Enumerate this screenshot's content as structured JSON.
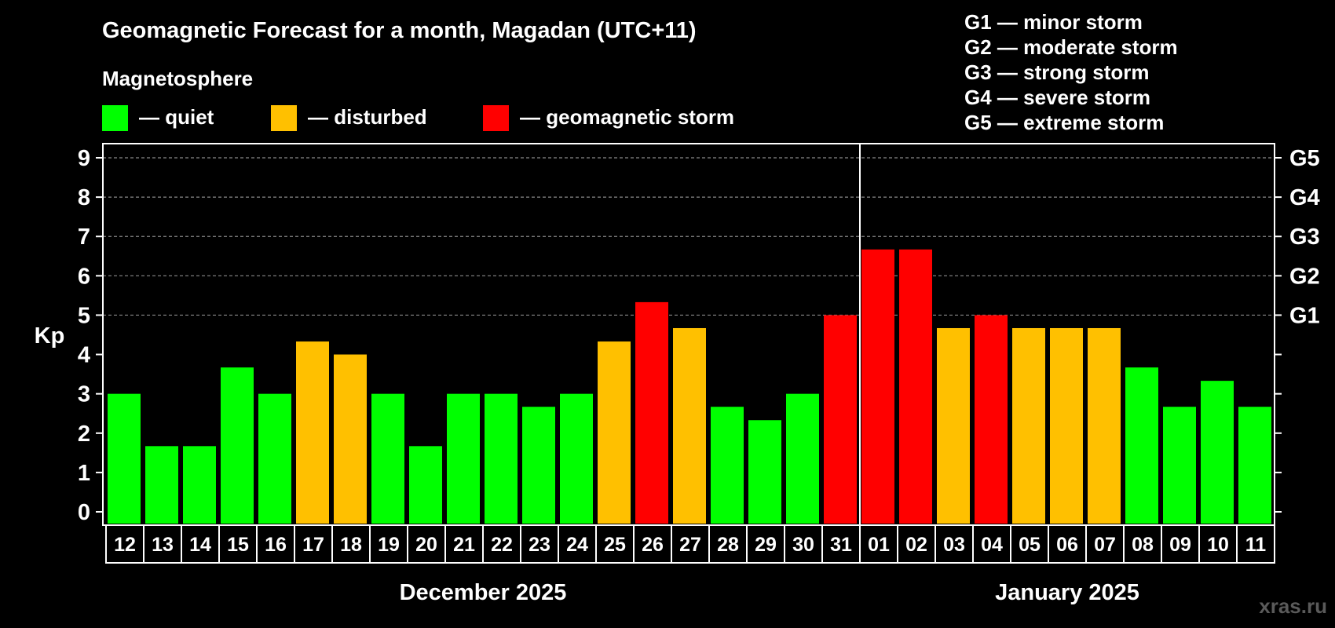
{
  "chart_data": {
    "type": "bar",
    "title": "Geomagnetic Forecast for a month, Magadan (UTC+11)",
    "ylabel": "Kp",
    "ylim": [
      0,
      9
    ],
    "grid": "horizontal dashed at 5-9",
    "legend": {
      "heading": "Magnetosphere",
      "items": [
        {
          "label": "— quiet",
          "color": "#00ff00"
        },
        {
          "label": "— disturbed",
          "color": "#ffc000"
        },
        {
          "label": "— geomagnetic storm",
          "color": "#ff0000"
        }
      ]
    },
    "storm_scale": [
      "G1 — minor storm",
      "G2 — moderate storm",
      "G3 — strong storm",
      "G4 — severe storm",
      "G5 — extreme storm"
    ],
    "right_axis": [
      {
        "kp": 5,
        "label": "G1"
      },
      {
        "kp": 6,
        "label": "G2"
      },
      {
        "kp": 7,
        "label": "G3"
      },
      {
        "kp": 8,
        "label": "G4"
      },
      {
        "kp": 9,
        "label": "G5"
      }
    ],
    "months": [
      {
        "label": "December 2025",
        "days": 20
      },
      {
        "label": "January 2025",
        "days": 11
      }
    ],
    "categories": [
      "12",
      "13",
      "14",
      "15",
      "16",
      "17",
      "18",
      "19",
      "20",
      "21",
      "22",
      "23",
      "24",
      "25",
      "26",
      "27",
      "28",
      "29",
      "30",
      "31",
      "01",
      "02",
      "03",
      "04",
      "05",
      "06",
      "07",
      "08",
      "09",
      "10",
      "11"
    ],
    "values": [
      3,
      1.67,
      1.67,
      3.67,
      3,
      4.33,
      4,
      3,
      1.67,
      3,
      3,
      2.67,
      3,
      4.33,
      5.33,
      4.67,
      2.67,
      2.33,
      3,
      5,
      6.67,
      6.67,
      4.67,
      5,
      4.67,
      4.67,
      4.67,
      3.67,
      2.67,
      3.33,
      2.67
    ],
    "levels": [
      "quiet",
      "quiet",
      "quiet",
      "quiet",
      "quiet",
      "disturbed",
      "disturbed",
      "quiet",
      "quiet",
      "quiet",
      "quiet",
      "quiet",
      "quiet",
      "disturbed",
      "storm",
      "disturbed",
      "quiet",
      "quiet",
      "quiet",
      "storm",
      "storm",
      "storm",
      "disturbed",
      "storm",
      "disturbed",
      "disturbed",
      "disturbed",
      "quiet",
      "quiet",
      "quiet",
      "quiet"
    ],
    "level_colors": {
      "quiet": "#00ff00",
      "disturbed": "#ffc000",
      "storm": "#ff0000"
    }
  },
  "watermark": "xras.ru"
}
